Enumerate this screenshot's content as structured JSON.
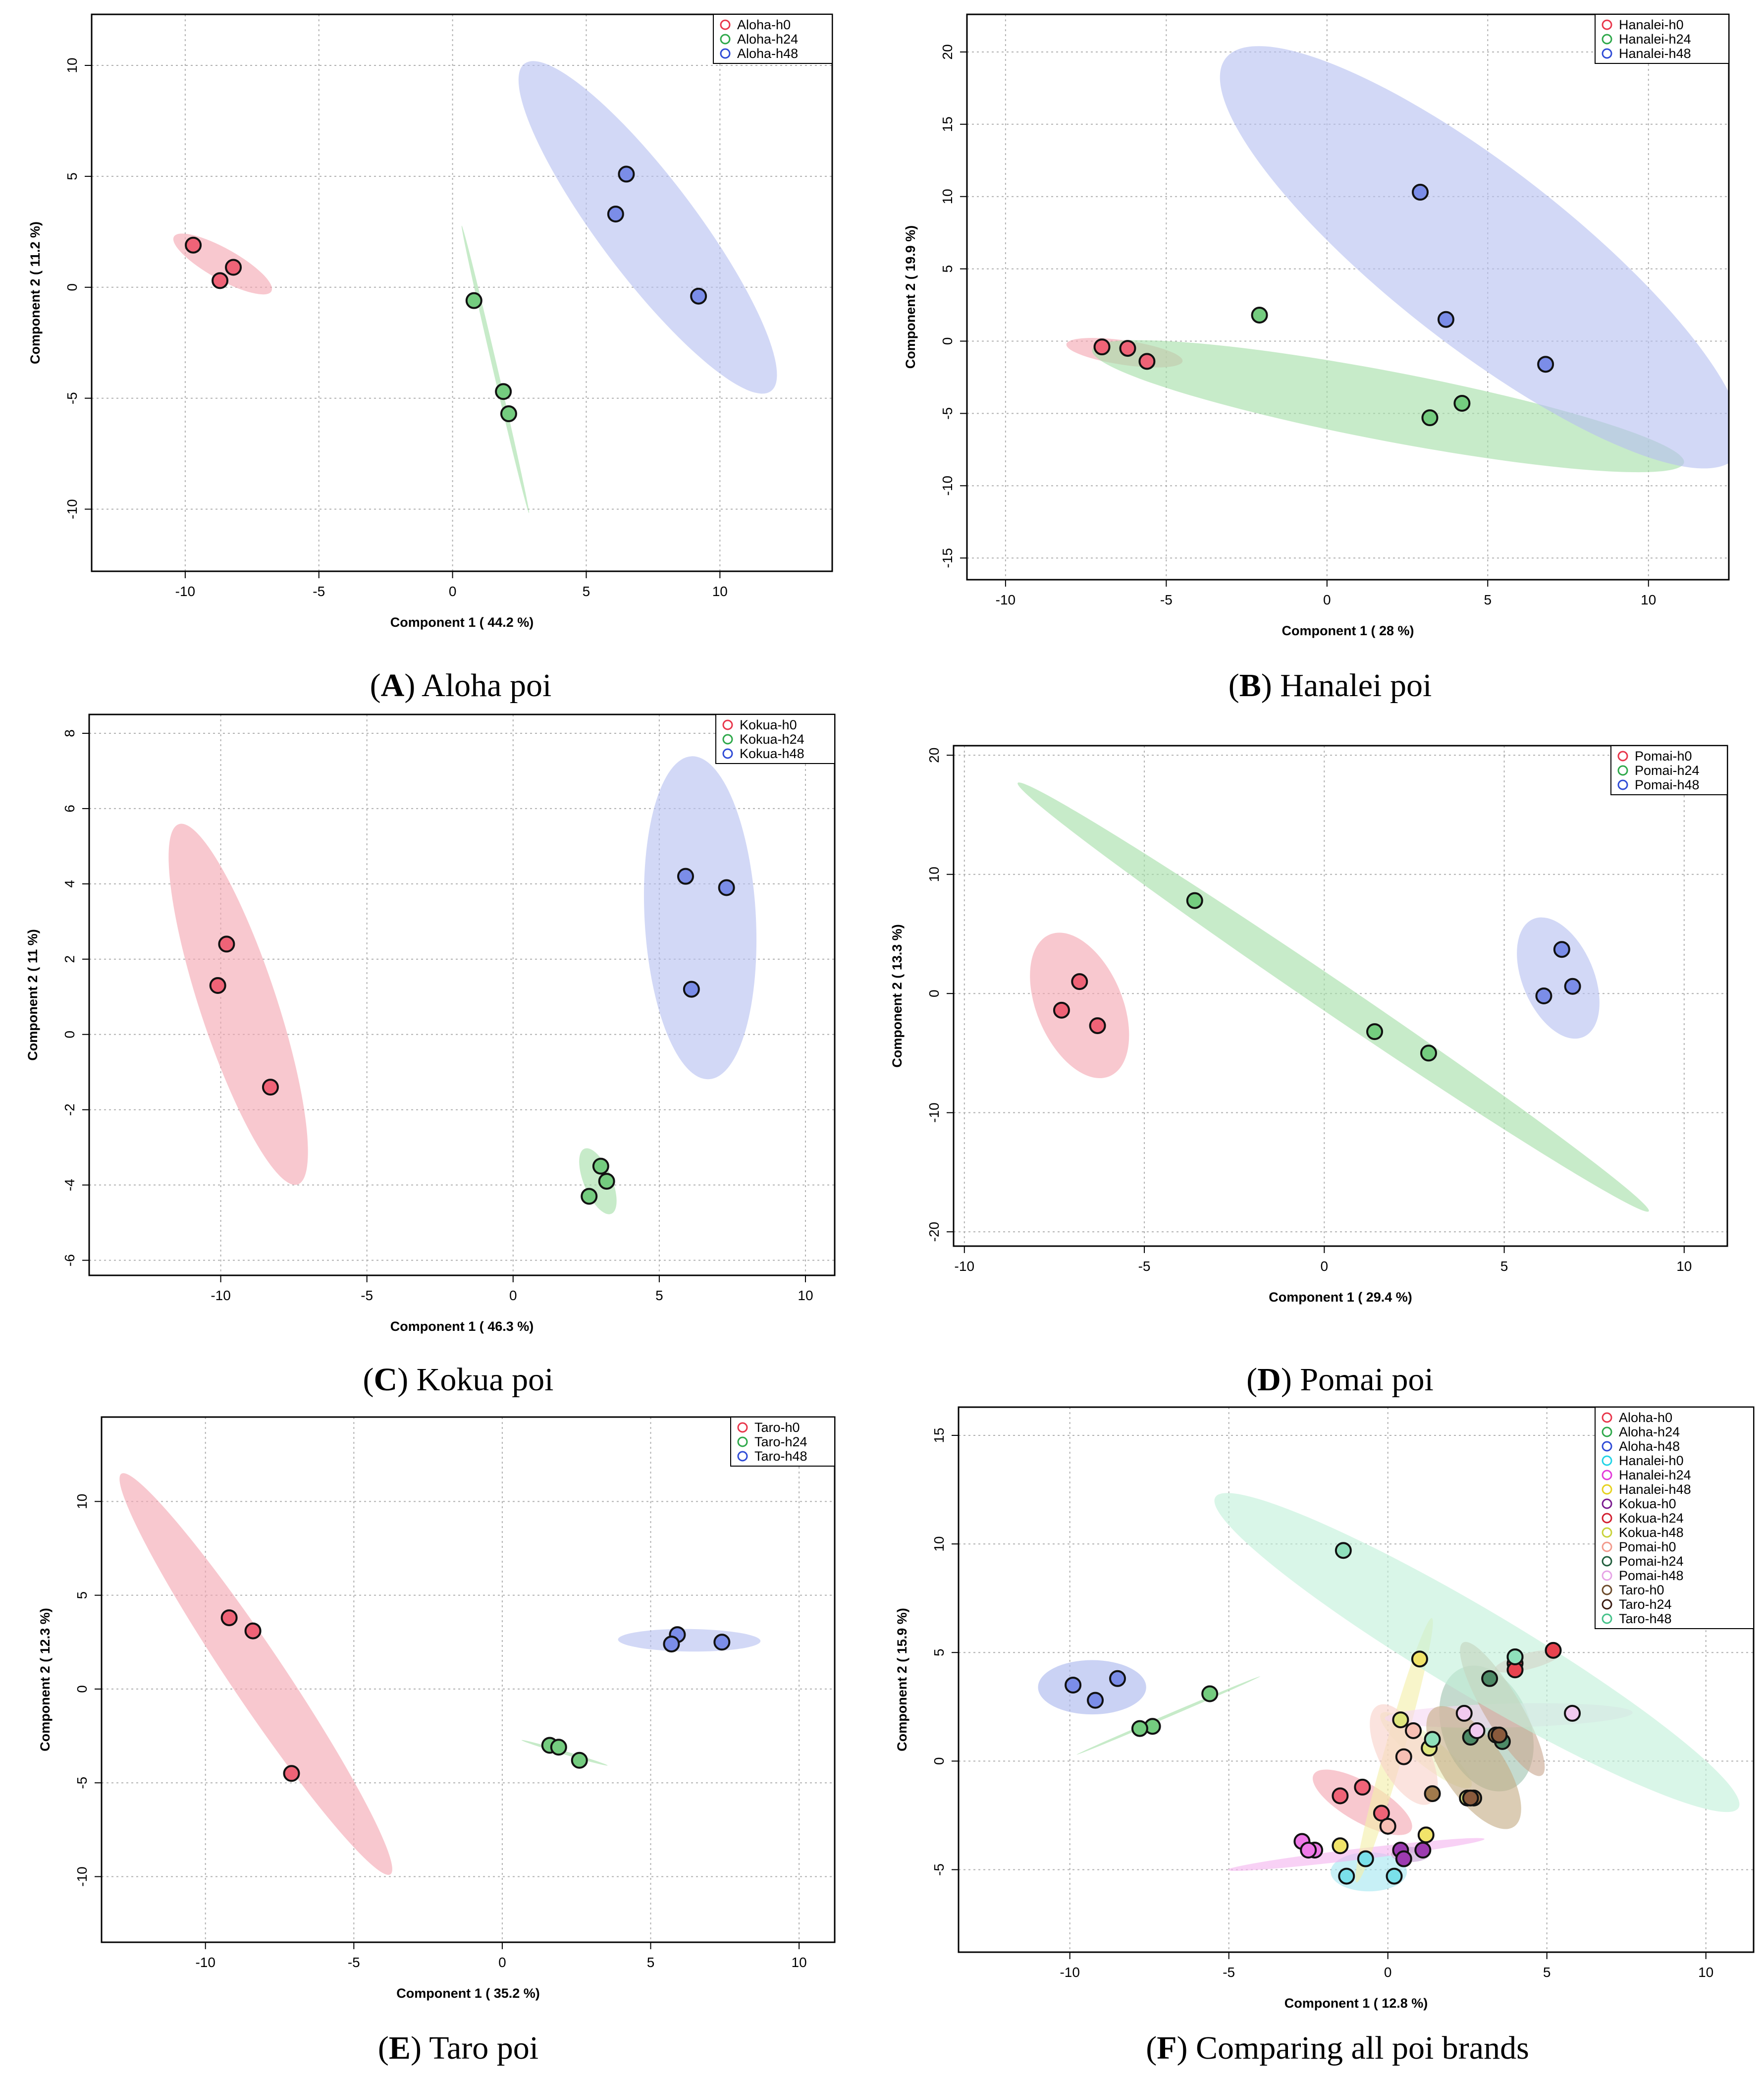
{
  "chart_data": [
    {
      "id": "A",
      "type": "scatter",
      "caption_letter": "A",
      "caption_text": "Aloha poi",
      "xlabel": "Component 1 ( 44.2 %)",
      "ylabel": "Component 2 ( 11.2 %)",
      "xlim": [
        -13.5,
        14.2
      ],
      "ylim": [
        -12.8,
        12.3
      ],
      "xticks": [
        -10,
        -5,
        0,
        5,
        10
      ],
      "yticks": [
        -10,
        -5,
        0,
        5,
        10
      ],
      "legend_position": "top-right",
      "series": [
        {
          "name": "Aloha-h0",
          "color": "#e8364b",
          "fill": "#ef6377",
          "points": [
            [
              -9.7,
              1.9
            ],
            [
              -8.7,
              0.3
            ],
            [
              -8.2,
              0.9
            ]
          ],
          "ellipse": {
            "cx": -8.6,
            "cy": 1.05,
            "rx": 2.2,
            "ry": 0.65,
            "angle": -34,
            "fill": "#f4a6b1"
          }
        },
        {
          "name": "Aloha-h24",
          "color": "#2ea84a",
          "fill": "#74cc7f",
          "points": [
            [
              0.8,
              -0.6
            ],
            [
              1.9,
              -4.7
            ],
            [
              2.1,
              -5.7
            ]
          ],
          "ellipse": {
            "cx": 1.6,
            "cy": -3.7,
            "rx": 6.6,
            "ry": 0.09,
            "angle": -79,
            "fill": "#a5dfa8"
          }
        },
        {
          "name": "Aloha-h48",
          "color": "#2f4bd6",
          "fill": "#7b8de8",
          "points": [
            [
              6.5,
              5.1
            ],
            [
              6.1,
              3.3
            ],
            [
              9.2,
              -0.4
            ]
          ],
          "ellipse": {
            "cx": 7.3,
            "cy": 2.7,
            "rx": 8.7,
            "ry": 1.9,
            "angle": -58,
            "fill": "#b6c0f1"
          }
        }
      ]
    },
    {
      "id": "B",
      "type": "scatter",
      "caption_letter": "B",
      "caption_text": "Hanalei poi",
      "xlabel": "Component 1 ( 28 %)",
      "ylabel": "Component 2 ( 19.9 %)",
      "xlim": [
        -11.2,
        12.5
      ],
      "ylim": [
        -16.5,
        22.6
      ],
      "xticks": [
        -10,
        -5,
        0,
        5,
        10
      ],
      "yticks": [
        -15,
        -10,
        -5,
        0,
        5,
        10,
        15,
        20
      ],
      "legend_position": "top-right",
      "series": [
        {
          "name": "Hanalei-h0",
          "color": "#e8364b",
          "fill": "#ef6377",
          "points": [
            [
              -7.0,
              -0.4
            ],
            [
              -6.2,
              -0.5
            ],
            [
              -5.6,
              -1.4
            ]
          ],
          "ellipse": {
            "cx": -6.3,
            "cy": -0.8,
            "rx": 1.9,
            "ry": 0.72,
            "angle": -18,
            "fill": "#f4a6b1"
          }
        },
        {
          "name": "Hanalei-h24",
          "color": "#2ea84a",
          "fill": "#74cc7f",
          "points": [
            [
              -2.1,
              1.8
            ],
            [
              4.2,
              -4.3
            ],
            [
              3.2,
              -5.3
            ]
          ],
          "ellipse": {
            "cx": 1.9,
            "cy": -4.5,
            "rx": 10.0,
            "ry": 1.9,
            "angle": -23,
            "fill": "#a5dfa8"
          }
        },
        {
          "name": "Hanalei-h48",
          "color": "#2f4bd6",
          "fill": "#7b8de8",
          "points": [
            [
              2.9,
              10.3
            ],
            [
              3.7,
              1.5
            ],
            [
              6.8,
              -1.6
            ]
          ],
          "ellipse": {
            "cx": 4.8,
            "cy": 5.8,
            "rx": 15.9,
            "ry": 3.1,
            "angle": -60,
            "fill": "#b6c0f1"
          }
        }
      ]
    },
    {
      "id": "C",
      "type": "scatter",
      "caption_letter": "C",
      "caption_text": "Kokua poi",
      "xlabel": "Component 1 ( 46.3 %)",
      "ylabel": "Component 2 ( 11 %)",
      "xlim": [
        -14.5,
        11.0
      ],
      "ylim": [
        -6.4,
        8.5
      ],
      "xticks": [
        -10,
        -5,
        0,
        5,
        10
      ],
      "yticks": [
        -6,
        -4,
        -2,
        0,
        2,
        4,
        6,
        8
      ],
      "legend_position": "top-right",
      "series": [
        {
          "name": "Kokua-h0",
          "color": "#e8364b",
          "fill": "#ef6377",
          "points": [
            [
              -9.8,
              2.4
            ],
            [
              -10.1,
              1.3
            ],
            [
              -8.3,
              -1.4
            ]
          ],
          "ellipse": {
            "cx": -9.4,
            "cy": 0.8,
            "rx": 5.2,
            "ry": 1.25,
            "angle": -67,
            "fill": "#f4a6b1"
          }
        },
        {
          "name": "Kokua-h24",
          "color": "#2ea84a",
          "fill": "#74cc7f",
          "points": [
            [
              3.0,
              -3.5
            ],
            [
              3.2,
              -3.9
            ],
            [
              2.6,
              -4.3
            ]
          ],
          "ellipse": {
            "cx": 2.9,
            "cy": -3.9,
            "rx": 0.98,
            "ry": 0.45,
            "angle": -62,
            "fill": "#a5dfa8"
          }
        },
        {
          "name": "Kokua-h48",
          "color": "#2f4bd6",
          "fill": "#7b8de8",
          "points": [
            [
              5.9,
              4.2
            ],
            [
              7.3,
              3.9
            ],
            [
              6.1,
              1.2
            ]
          ],
          "ellipse": {
            "cx": 6.4,
            "cy": 3.1,
            "rx": 4.3,
            "ry": 1.9,
            "angle": -86,
            "fill": "#b6c0f1"
          }
        }
      ]
    },
    {
      "id": "D",
      "type": "scatter",
      "caption_letter": "D",
      "caption_text": "Pomai poi",
      "xlabel": "Component 1 ( 29.4 %)",
      "ylabel": "Component 2 ( 13.3 %)",
      "xlim": [
        -10.3,
        11.2
      ],
      "ylim": [
        -21.2,
        20.8
      ],
      "xticks": [
        -10,
        -5,
        0,
        5,
        10
      ],
      "yticks": [
        -20,
        -10,
        0,
        10,
        20
      ],
      "legend_position": "top-right",
      "series": [
        {
          "name": "Pomai-h0",
          "color": "#e8364b",
          "fill": "#ef6377",
          "points": [
            [
              -6.8,
              1.0
            ],
            [
              -7.3,
              -1.4
            ],
            [
              -6.3,
              -2.7
            ]
          ],
          "ellipse": {
            "cx": -6.8,
            "cy": -1.0,
            "rx": 6.0,
            "ry": 1.2,
            "angle": -82,
            "fill": "#f4a6b1"
          }
        },
        {
          "name": "Pomai-h24",
          "color": "#2ea84a",
          "fill": "#74cc7f",
          "points": [
            [
              -3.6,
              7.8
            ],
            [
              1.4,
              -3.2
            ],
            [
              2.9,
              -5.0
            ]
          ],
          "ellipse": {
            "cx": 0.25,
            "cy": -0.3,
            "rx": 20.0,
            "ry": 0.5,
            "angle": -64,
            "fill": "#a5dfa8"
          }
        },
        {
          "name": "Pomai-h48",
          "color": "#2f4bd6",
          "fill": "#7b8de8",
          "points": [
            [
              6.6,
              3.7
            ],
            [
              6.1,
              -0.2
            ],
            [
              6.9,
              0.6
            ]
          ],
          "ellipse": {
            "cx": 6.5,
            "cy": 1.3,
            "rx": 5.0,
            "ry": 1.0,
            "angle": -82,
            "fill": "#b6c0f1"
          }
        }
      ]
    },
    {
      "id": "E",
      "type": "scatter",
      "caption_letter": "E",
      "caption_text": "Taro poi",
      "xlabel": "Component 1 ( 35.2 %)",
      "ylabel": "Component 2 ( 12.3 %)",
      "xlim": [
        -13.5,
        11.2
      ],
      "ylim": [
        -13.5,
        14.5
      ],
      "xticks": [
        -10,
        -5,
        0,
        5,
        10
      ],
      "yticks": [
        -10,
        -5,
        0,
        5,
        10
      ],
      "legend_position": "top-right",
      "series": [
        {
          "name": "Taro-h0",
          "color": "#e8364b",
          "fill": "#ef6377",
          "points": [
            [
              -9.2,
              3.8
            ],
            [
              -8.4,
              3.1
            ],
            [
              -7.1,
              -4.5
            ]
          ],
          "ellipse": {
            "cx": -8.3,
            "cy": 0.8,
            "rx": 11.6,
            "ry": 0.95,
            "angle": -67,
            "fill": "#f4a6b1"
          }
        },
        {
          "name": "Taro-h24",
          "color": "#2ea84a",
          "fill": "#74cc7f",
          "points": [
            [
              1.6,
              -3.0
            ],
            [
              1.9,
              -3.1
            ],
            [
              2.6,
              -3.8
            ]
          ],
          "ellipse": {
            "cx": 2.1,
            "cy": -3.4,
            "rx": 1.6,
            "ry": 0.08,
            "angle": -25,
            "fill": "#a5dfa8"
          }
        },
        {
          "name": "Taro-h48",
          "color": "#2f4bd6",
          "fill": "#7b8de8",
          "points": [
            [
              5.9,
              2.9
            ],
            [
              5.7,
              2.4
            ],
            [
              7.4,
              2.5
            ]
          ],
          "ellipse": {
            "cx": 6.3,
            "cy": 2.6,
            "rx": 2.4,
            "ry": 0.6,
            "angle": -1,
            "fill": "#b6c0f1"
          }
        }
      ]
    },
    {
      "id": "F",
      "type": "scatter",
      "caption_letter": "F",
      "caption_text": "Comparing all poi brands",
      "xlabel": "Component 1 ( 12.8 %)",
      "ylabel": "Component 2 ( 15.9 %)",
      "xlim": [
        -13.5,
        11.5
      ],
      "ylim": [
        -8.8,
        16.3
      ],
      "xticks": [
        -10,
        -5,
        0,
        5,
        10
      ],
      "yticks": [
        -5,
        0,
        5,
        10,
        15
      ],
      "legend_position": "top-right",
      "series": [
        {
          "name": "Aloha-h0",
          "color": "#e8364b",
          "fill": "#ef6377",
          "points": [
            [
              -1.5,
              -1.6
            ],
            [
              -0.8,
              -1.2
            ],
            [
              -0.2,
              -2.4
            ]
          ],
          "ellipse": {
            "cx": -0.8,
            "cy": -1.9,
            "rx": 2.0,
            "ry": 0.75,
            "angle": -40,
            "fill": "#f4a6b1"
          }
        },
        {
          "name": "Aloha-h24",
          "color": "#2ea84a",
          "fill": "#74cc7f",
          "points": [
            [
              -5.6,
              3.1
            ],
            [
              -7.4,
              1.6
            ],
            [
              -7.8,
              1.5
            ]
          ],
          "ellipse": {
            "cx": -6.9,
            "cy": 2.1,
            "rx": 3.4,
            "ry": 0.06,
            "angle": 32,
            "fill": "#a5dfa8"
          }
        },
        {
          "name": "Aloha-h48",
          "color": "#2f4bd6",
          "fill": "#7b8de8",
          "points": [
            [
              -9.9,
              3.5
            ],
            [
              -9.2,
              2.8
            ],
            [
              -8.5,
              3.8
            ]
          ],
          "ellipse": {
            "cx": -9.3,
            "cy": 3.4,
            "rx": 1.7,
            "ry": 1.25,
            "angle": 0,
            "fill": "#a9b6ee"
          }
        },
        {
          "name": "Hanalei-h0",
          "color": "#22d3e6",
          "fill": "#7ae0ea",
          "points": [
            [
              -1.3,
              -5.3
            ],
            [
              0.2,
              -5.3
            ],
            [
              -0.7,
              -4.5
            ]
          ],
          "ellipse": {
            "cx": -0.6,
            "cy": -5.1,
            "rx": 1.2,
            "ry": 0.9,
            "angle": 0,
            "fill": "#a5e6f0"
          }
        },
        {
          "name": "Hanalei-h24",
          "color": "#e23ad9",
          "fill": "#ef7ae8",
          "points": [
            [
              -2.7,
              -3.7
            ],
            [
              -2.3,
              -4.1
            ],
            [
              -2.5,
              -4.1
            ]
          ],
          "ellipse": {
            "cx": -1.0,
            "cy": -4.3,
            "rx": 4.1,
            "ry": 0.25,
            "angle": 10,
            "fill": "#f3b5ef"
          }
        },
        {
          "name": "Hanalei-h48",
          "color": "#e6d21f",
          "fill": "#f1e46a",
          "points": [
            [
              1.0,
              4.7
            ],
            [
              -1.5,
              -3.9
            ],
            [
              1.2,
              -3.4
            ]
          ],
          "ellipse": {
            "cx": 0.2,
            "cy": 0.5,
            "rx": 6.2,
            "ry": 0.3,
            "angle": 79,
            "fill": "#f3efaa"
          }
        },
        {
          "name": "Kokua-h0",
          "color": "#7a1a8f",
          "fill": "#9c3bb0",
          "points": [
            [
              0.4,
              -4.1
            ],
            [
              0.5,
              -4.5
            ],
            [
              1.1,
              -4.1
            ]
          ],
          "ellipse": {
            "cx": 0.7,
            "cy": -4.3,
            "rx": 0.6,
            "ry": 0.35,
            "angle": 0,
            "fill": "#c79fd3"
          }
        },
        {
          "name": "Kokua-h24",
          "color": "#d21f2f",
          "fill": "#e8434f",
          "points": [
            [
              4.0,
              4.5
            ],
            [
              4.0,
              4.2
            ],
            [
              5.2,
              5.1
            ]
          ],
          "ellipse": {
            "cx": 4.4,
            "cy": 4.6,
            "rx": 1.1,
            "ry": 0.35,
            "angle": 20,
            "fill": "#efa5a9"
          }
        },
        {
          "name": "Kokua-h48",
          "color": "#c8d23a",
          "fill": "#dfe67f",
          "points": [
            [
              0.4,
              1.9
            ],
            [
              1.3,
              0.6
            ],
            [
              2.5,
              -1.7
            ]
          ],
          "ellipse": {
            "cx": 1.2,
            "cy": 0.5,
            "rx": 2.2,
            "ry": 0.5,
            "angle": -50,
            "fill": "#eef1bf"
          }
        },
        {
          "name": "Pomai-h0",
          "color": "#f29a8c",
          "fill": "#f7bfb4",
          "points": [
            [
              0.8,
              1.4
            ],
            [
              0.5,
              0.2
            ],
            [
              0.0,
              -3.0
            ]
          ],
          "ellipse": {
            "cx": 0.5,
            "cy": 0.3,
            "rx": 2.4,
            "ry": 0.8,
            "angle": -70,
            "fill": "#f9d2c9"
          }
        },
        {
          "name": "Pomai-h24",
          "color": "#1f5c3b",
          "fill": "#4d8a66",
          "points": [
            [
              3.2,
              3.8
            ],
            [
              2.6,
              1.1
            ],
            [
              3.6,
              0.9
            ]
          ],
          "ellipse": {
            "cx": 3.1,
            "cy": 1.5,
            "rx": 2.9,
            "ry": 1.4,
            "angle": -75,
            "fill": "#9fc4b0"
          }
        },
        {
          "name": "Pomai-h48",
          "color": "#e6a3e6",
          "fill": "#f1caef",
          "points": [
            [
              2.4,
              2.2
            ],
            [
              5.8,
              2.2
            ],
            [
              2.8,
              1.4
            ]
          ],
          "ellipse": {
            "cx": 3.8,
            "cy": 2.1,
            "rx": 3.9,
            "ry": 0.55,
            "angle": 2,
            "fill": "#f5d9f2"
          }
        },
        {
          "name": "Taro-h0",
          "color": "#6b4a2a",
          "fill": "#a07a4c",
          "points": [
            [
              1.4,
              -1.5
            ],
            [
              2.7,
              -1.7
            ],
            [
              3.4,
              1.2
            ]
          ],
          "ellipse": {
            "cx": 2.7,
            "cy": -0.3,
            "rx": 3.0,
            "ry": 1.0,
            "angle": -65,
            "fill": "#c5ac86"
          }
        },
        {
          "name": "Taro-h24",
          "color": "#3a1a10",
          "fill": "#8a5a3c",
          "points": [
            [
              4.0,
              4.8
            ],
            [
              2.6,
              -1.7
            ],
            [
              3.5,
              1.2
            ]
          ],
          "ellipse": {
            "cx": 3.6,
            "cy": 2.4,
            "rx": 3.3,
            "ry": 0.6,
            "angle": -68,
            "fill": "#c9a892"
          }
        },
        {
          "name": "Taro-h48",
          "color": "#45c28a",
          "fill": "#8fe0bb",
          "points": [
            [
              -1.4,
              9.7
            ],
            [
              4.0,
              4.8
            ],
            [
              1.4,
              1.0
            ]
          ],
          "ellipse": {
            "cx": 2.8,
            "cy": 5.0,
            "rx": 10.9,
            "ry": 1.6,
            "angle": -41,
            "fill": "#c2f0da"
          }
        }
      ]
    }
  ]
}
